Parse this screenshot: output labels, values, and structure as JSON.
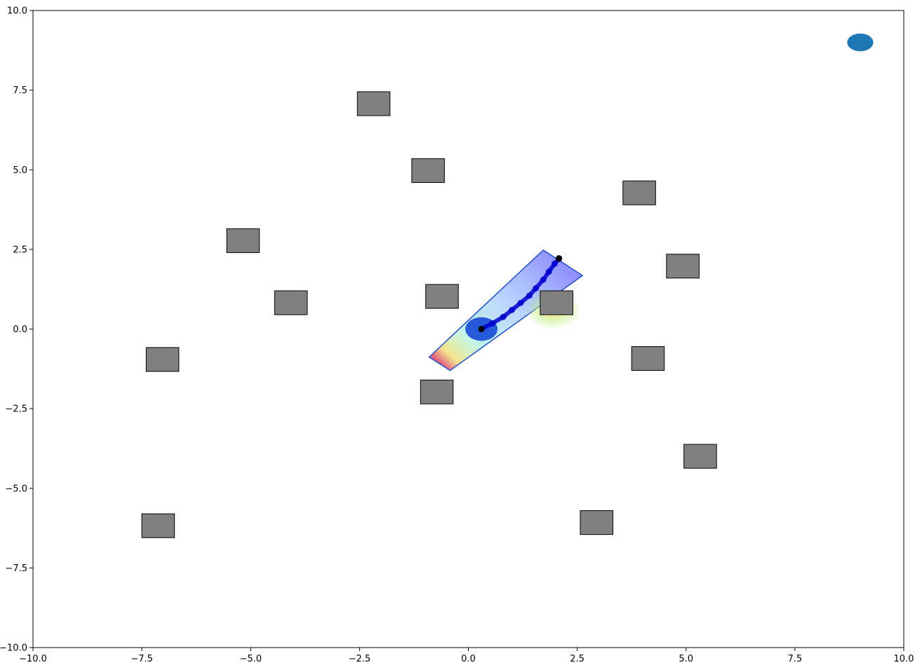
{
  "chart_data": {
    "type": "scatter",
    "title": "",
    "xlabel": "",
    "ylabel": "",
    "xlim": [
      -10,
      10
    ],
    "ylim": [
      -10,
      10
    ],
    "grid": false,
    "xticks": [
      -10,
      -7.5,
      -5,
      -2.5,
      0,
      2.5,
      5,
      7.5,
      10
    ],
    "yticks": [
      -10,
      -7.5,
      -5,
      -2.5,
      0,
      2.5,
      5,
      7.5,
      10
    ],
    "xtick_labels": [
      "−10.0",
      "−7.5",
      "−5.0",
      "−2.5",
      "0.0",
      "2.5",
      "5.0",
      "7.5",
      "10.0"
    ],
    "ytick_labels": [
      "−10.0",
      "−7.5",
      "−5.0",
      "−2.5",
      "0.0",
      "2.5",
      "5.0",
      "7.5",
      "10.0"
    ],
    "obstacles": [
      {
        "x0": -2.55,
        "x1": -1.8,
        "y0": 6.7,
        "y1": 7.45
      },
      {
        "x0": -1.3,
        "x1": -0.55,
        "y0": 4.6,
        "y1": 5.35
      },
      {
        "x0": 3.55,
        "x1": 4.3,
        "y0": 3.9,
        "y1": 4.65
      },
      {
        "x0": -5.55,
        "x1": -4.8,
        "y0": 2.4,
        "y1": 3.15
      },
      {
        "x0": 4.55,
        "x1": 5.3,
        "y0": 1.6,
        "y1": 2.35
      },
      {
        "x0": -4.45,
        "x1": -3.7,
        "y0": 0.45,
        "y1": 1.2
      },
      {
        "x0": -0.98,
        "x1": -0.23,
        "y0": 0.65,
        "y1": 1.4
      },
      {
        "x0": 1.65,
        "x1": 2.4,
        "y0": 0.45,
        "y1": 1.2
      },
      {
        "x0": -7.4,
        "x1": -6.65,
        "y0": -1.33,
        "y1": -0.58
      },
      {
        "x0": 3.75,
        "x1": 4.5,
        "y0": -1.3,
        "y1": -0.55
      },
      {
        "x0": -1.1,
        "x1": -0.35,
        "y0": -2.35,
        "y1": -1.6
      },
      {
        "x0": 4.95,
        "x1": 5.7,
        "y0": -4.37,
        "y1": -3.62
      },
      {
        "x0": 2.57,
        "x1": 3.32,
        "y0": -6.45,
        "y1": -5.7
      },
      {
        "x0": -7.5,
        "x1": -6.75,
        "y0": -6.55,
        "y1": -5.8
      }
    ],
    "goal": {
      "x": 9.0,
      "y": 9.0,
      "rx": 0.3,
      "ry": 0.28,
      "color": "#1f77b4"
    },
    "robot": {
      "x": 0.3,
      "y": 0.0,
      "rx": 0.37,
      "ry": 0.37,
      "color": "#0a3fd6"
    },
    "sensor_region": [
      {
        "x": -0.9,
        "y": -0.88
      },
      {
        "x": 1.72,
        "y": 2.48
      },
      {
        "x": 2.62,
        "y": 1.68
      },
      {
        "x": -0.42,
        "y": -1.3
      }
    ],
    "trajectory": {
      "color": "#0000cc",
      "x": [
        0.3,
        0.55,
        0.8,
        1.0,
        1.2,
        1.4,
        1.55,
        1.72,
        1.85,
        1.98,
        2.08
      ],
      "y": [
        0.0,
        0.18,
        0.38,
        0.6,
        0.82,
        1.05,
        1.28,
        1.55,
        1.8,
        2.05,
        2.2
      ]
    },
    "trajectory_end": {
      "x": 2.08,
      "y": 2.22,
      "color": "#000000"
    }
  }
}
